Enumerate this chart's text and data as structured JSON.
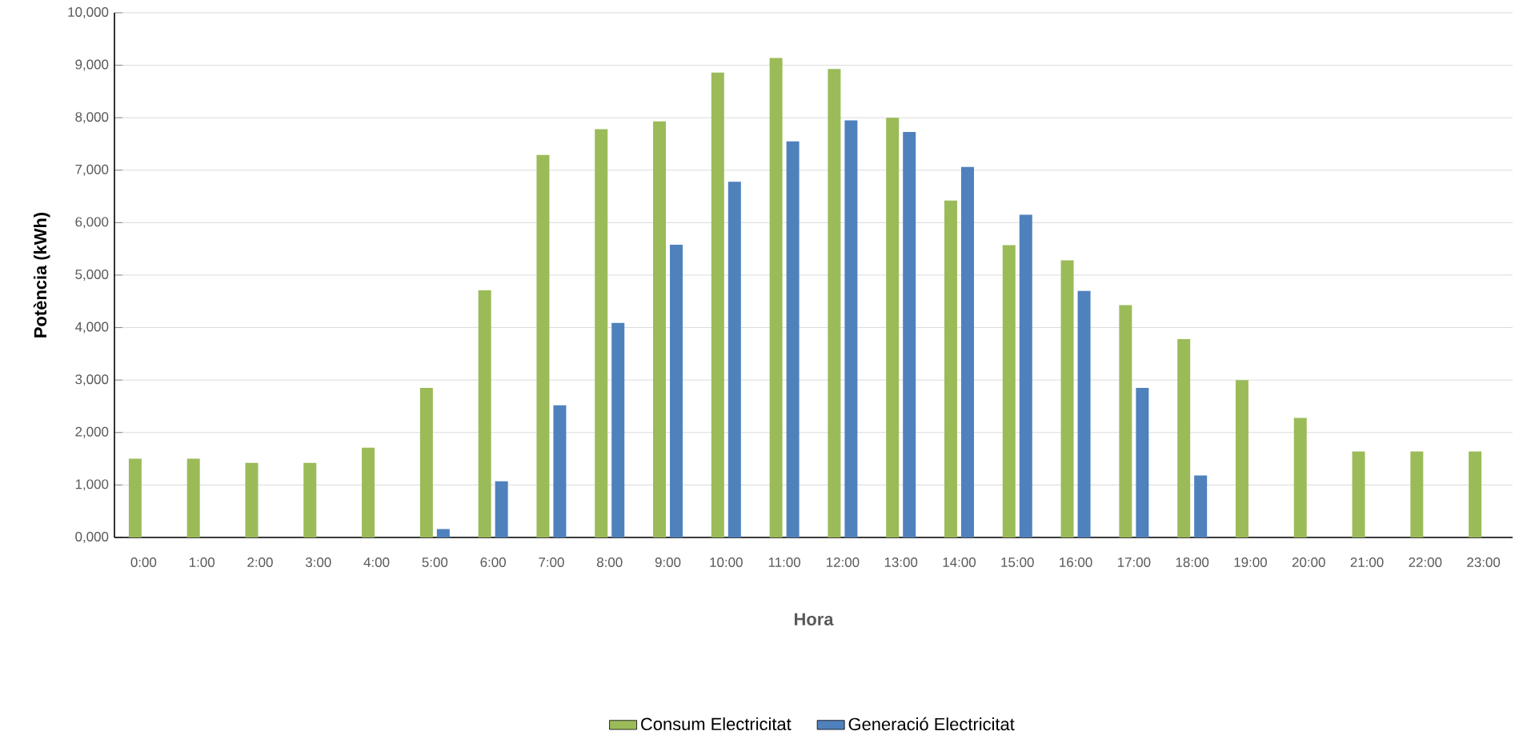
{
  "chart_data": {
    "type": "bar",
    "xlabel": "Hora",
    "ylabel": "Potència (kWh)",
    "categories": [
      "0:00",
      "1:00",
      "2:00",
      "3:00",
      "4:00",
      "5:00",
      "6:00",
      "7:00",
      "8:00",
      "9:00",
      "10:00",
      "11:00",
      "12:00",
      "13:00",
      "14:00",
      "15:00",
      "16:00",
      "17:00",
      "18:00",
      "19:00",
      "20:00",
      "21:00",
      "22:00",
      "23:00"
    ],
    "series": [
      {
        "name": "Consum Electricitat",
        "color": "#9bbb59",
        "values": [
          1500,
          1500,
          1420,
          1420,
          1710,
          2850,
          4710,
          7290,
          7780,
          7930,
          8860,
          9140,
          8930,
          8000,
          6420,
          5570,
          5280,
          4430,
          3780,
          3000,
          2280,
          1640,
          1640,
          1640
        ]
      },
      {
        "name": "Generació Electricitat",
        "color": "#4f81bd",
        "values": [
          null,
          null,
          null,
          null,
          null,
          160,
          1070,
          2520,
          4090,
          5580,
          6780,
          7550,
          7950,
          7730,
          7060,
          6150,
          4700,
          2850,
          1180,
          null,
          null,
          null,
          null,
          null
        ]
      }
    ],
    "ylim": [
      0,
      10000
    ],
    "yticks": [
      {
        "value": 0,
        "label": "0,000"
      },
      {
        "value": 1000,
        "label": "1,000"
      },
      {
        "value": 2000,
        "label": "2,000"
      },
      {
        "value": 3000,
        "label": "3,000"
      },
      {
        "value": 4000,
        "label": "4,000"
      },
      {
        "value": 5000,
        "label": "5,000"
      },
      {
        "value": 6000,
        "label": "6,000"
      },
      {
        "value": 7000,
        "label": "7,000"
      },
      {
        "value": 8000,
        "label": "8,000"
      },
      {
        "value": 9000,
        "label": "9,000"
      },
      {
        "value": 10000,
        "label": "10,000"
      }
    ],
    "grid": "y",
    "legend": "bottom"
  }
}
